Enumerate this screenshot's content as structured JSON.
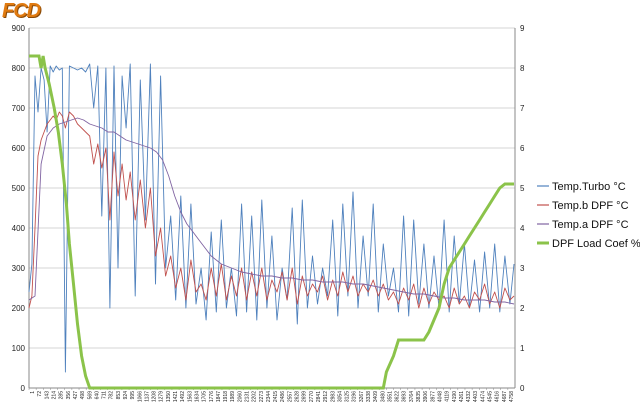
{
  "logo": {
    "text": "FCD"
  },
  "chart_data": {
    "type": "line",
    "title": "",
    "xlabel": "",
    "ylabel": "",
    "ylim": [
      0,
      900
    ],
    "y2lim": [
      0,
      9
    ],
    "yticks": [
      0,
      100,
      200,
      300,
      400,
      500,
      600,
      700,
      800,
      900
    ],
    "y2ticks": [
      0,
      1,
      2,
      3,
      4,
      5,
      6,
      7,
      8,
      9
    ],
    "xlim": [
      1,
      4800
    ],
    "x_tick_labels": [
      "1",
      "72",
      "143",
      "214",
      "285",
      "356",
      "427",
      "498",
      "569",
      "640",
      "711",
      "782",
      "853",
      "924",
      "995",
      "1066",
      "1137",
      "1208",
      "1279",
      "1350",
      "1421",
      "1492",
      "1563",
      "1634",
      "1705",
      "1776",
      "1847",
      "1918",
      "1989",
      "2060",
      "2131",
      "2202",
      "2273",
      "2344",
      "2415",
      "2486",
      "2557",
      "2628",
      "2699",
      "2770",
      "2841",
      "2912",
      "2983",
      "3054",
      "3125",
      "3196",
      "3267",
      "3338",
      "3409",
      "3480",
      "3551",
      "3622",
      "3693",
      "3764",
      "3835",
      "3906",
      "3977",
      "4048",
      "4119",
      "4190",
      "4261",
      "4332",
      "4403",
      "4474",
      "4545",
      "4616",
      "4687",
      "4758"
    ],
    "grid": true,
    "legend_position": "right",
    "series": [
      {
        "name": "Temp.Turbo °C",
        "axis": "left",
        "color": "#4f81bd",
        "x": [
          1,
          30,
          60,
          90,
          120,
          150,
          180,
          210,
          240,
          270,
          300,
          330,
          360,
          400,
          440,
          480,
          520,
          560,
          600,
          640,
          680,
          720,
          760,
          800,
          840,
          880,
          920,
          960,
          1000,
          1050,
          1100,
          1150,
          1200,
          1250,
          1300,
          1350,
          1400,
          1450,
          1500,
          1550,
          1600,
          1650,
          1700,
          1750,
          1800,
          1850,
          1900,
          1950,
          2000,
          2050,
          2100,
          2150,
          2200,
          2250,
          2300,
          2350,
          2400,
          2450,
          2500,
          2550,
          2600,
          2650,
          2700,
          2750,
          2800,
          2850,
          2900,
          2950,
          3000,
          3050,
          3100,
          3150,
          3200,
          3250,
          3300,
          3350,
          3400,
          3450,
          3500,
          3550,
          3600,
          3650,
          3700,
          3750,
          3800,
          3850,
          3900,
          3950,
          4000,
          4050,
          4100,
          4150,
          4200,
          4250,
          4300,
          4350,
          4400,
          4450,
          4500,
          4550,
          4600,
          4650,
          4700,
          4750,
          4790
        ],
        "values": [
          240,
          310,
          780,
          690,
          800,
          770,
          640,
          805,
          790,
          805,
          795,
          800,
          40,
          805,
          800,
          795,
          800,
          790,
          810,
          700,
          805,
          430,
          800,
          200,
          805,
          300,
          780,
          650,
          810,
          230,
          770,
          420,
          810,
          260,
          780,
          300,
          430,
          220,
          480,
          200,
          460,
          210,
          300,
          170,
          390,
          190,
          420,
          200,
          300,
          180,
          460,
          190,
          430,
          170,
          470,
          200,
          380,
          170,
          300,
          220,
          450,
          160,
          470,
          200,
          330,
          210,
          300,
          230,
          420,
          180,
          460,
          230,
          490,
          200,
          380,
          230,
          460,
          190,
          360,
          230,
          300,
          190,
          430,
          180,
          420,
          210,
          360,
          200,
          330,
          200,
          420,
          190,
          380,
          210,
          360,
          200,
          320,
          190,
          340,
          200,
          360,
          190,
          330,
          210,
          310
        ]
      },
      {
        "name": "Temp.b DPF °C",
        "axis": "left",
        "color": "#c0504d",
        "x": [
          1,
          30,
          60,
          90,
          120,
          150,
          180,
          210,
          240,
          270,
          300,
          330,
          360,
          400,
          440,
          480,
          520,
          560,
          600,
          640,
          680,
          720,
          760,
          800,
          840,
          880,
          920,
          960,
          1000,
          1050,
          1100,
          1150,
          1200,
          1250,
          1300,
          1350,
          1400,
          1450,
          1500,
          1550,
          1600,
          1650,
          1700,
          1750,
          1800,
          1850,
          1900,
          1950,
          2000,
          2050,
          2100,
          2150,
          2200,
          2250,
          2300,
          2350,
          2400,
          2450,
          2500,
          2550,
          2600,
          2650,
          2700,
          2750,
          2800,
          2850,
          2900,
          2950,
          3000,
          3050,
          3100,
          3150,
          3200,
          3250,
          3300,
          3350,
          3400,
          3450,
          3500,
          3550,
          3600,
          3650,
          3700,
          3750,
          3800,
          3850,
          3900,
          3950,
          4000,
          4050,
          4100,
          4150,
          4200,
          4250,
          4300,
          4350,
          4400,
          4450,
          4500,
          4550,
          4600,
          4650,
          4700,
          4750,
          4790
        ],
        "values": [
          200,
          230,
          400,
          580,
          620,
          640,
          660,
          670,
          680,
          670,
          690,
          680,
          650,
          690,
          680,
          660,
          650,
          640,
          630,
          560,
          610,
          550,
          600,
          420,
          590,
          480,
          560,
          470,
          540,
          420,
          520,
          400,
          500,
          330,
          400,
          280,
          330,
          250,
          300,
          220,
          320,
          240,
          260,
          220,
          300,
          230,
          310,
          220,
          280,
          230,
          300,
          220,
          290,
          230,
          300,
          220,
          270,
          240,
          290,
          220,
          300,
          210,
          280,
          230,
          260,
          240,
          280,
          220,
          270,
          230,
          290,
          240,
          280,
          230,
          260,
          240,
          270,
          230,
          260,
          220,
          240,
          210,
          250,
          220,
          260,
          200,
          250,
          210,
          240,
          220,
          230,
          200,
          250,
          210,
          230,
          200,
          240,
          220,
          260,
          210,
          240,
          200,
          250,
          220,
          230
        ]
      },
      {
        "name": "Temp.a DPF °C",
        "axis": "left",
        "color": "#8064a2",
        "x": [
          1,
          60,
          120,
          180,
          240,
          300,
          360,
          420,
          480,
          540,
          600,
          660,
          720,
          780,
          840,
          900,
          960,
          1020,
          1080,
          1140,
          1200,
          1260,
          1320,
          1380,
          1440,
          1500,
          1560,
          1620,
          1680,
          1740,
          1800,
          1900,
          2000,
          2100,
          2200,
          2300,
          2400,
          2500,
          2600,
          2700,
          2800,
          2900,
          3000,
          3100,
          3200,
          3300,
          3400,
          3500,
          3600,
          3700,
          3800,
          3900,
          4000,
          4100,
          4200,
          4300,
          4400,
          4500,
          4600,
          4700,
          4790
        ],
        "values": [
          220,
          230,
          560,
          630,
          650,
          660,
          665,
          670,
          675,
          670,
          660,
          655,
          650,
          640,
          640,
          630,
          620,
          615,
          610,
          605,
          600,
          590,
          570,
          530,
          480,
          440,
          410,
          390,
          370,
          350,
          330,
          310,
          300,
          290,
          285,
          280,
          280,
          275,
          275,
          270,
          270,
          265,
          265,
          265,
          260,
          260,
          255,
          250,
          245,
          240,
          235,
          235,
          230,
          225,
          225,
          220,
          220,
          220,
          215,
          215,
          210
        ]
      },
      {
        "name": "DPF Load Coef  %",
        "axis": "right",
        "color": "#8bc34a",
        "x": [
          1,
          50,
          100,
          120,
          140,
          160,
          200,
          250,
          290,
          330,
          370,
          400,
          440,
          480,
          520,
          560,
          600,
          640,
          700,
          800,
          900,
          1000,
          1500,
          2000,
          2500,
          3000,
          3500,
          3530,
          3600,
          3650,
          3900,
          3950,
          4050,
          4100,
          4150,
          4200,
          4250,
          4300,
          4350,
          4400,
          4450,
          4500,
          4550,
          4600,
          4650,
          4700,
          4790
        ],
        "values": [
          8.3,
          8.3,
          8.3,
          8.0,
          8.3,
          8.0,
          7.6,
          7.0,
          6.4,
          5.6,
          4.6,
          3.6,
          2.6,
          1.6,
          0.8,
          0.3,
          0,
          0,
          0,
          0,
          0,
          0,
          0,
          0,
          0,
          0,
          0,
          0.4,
          0.8,
          1.2,
          1.2,
          1.4,
          2.0,
          2.6,
          3.0,
          3.2,
          3.4,
          3.6,
          3.8,
          4.0,
          4.2,
          4.4,
          4.6,
          4.8,
          5.0,
          5.1,
          5.1
        ]
      }
    ]
  }
}
